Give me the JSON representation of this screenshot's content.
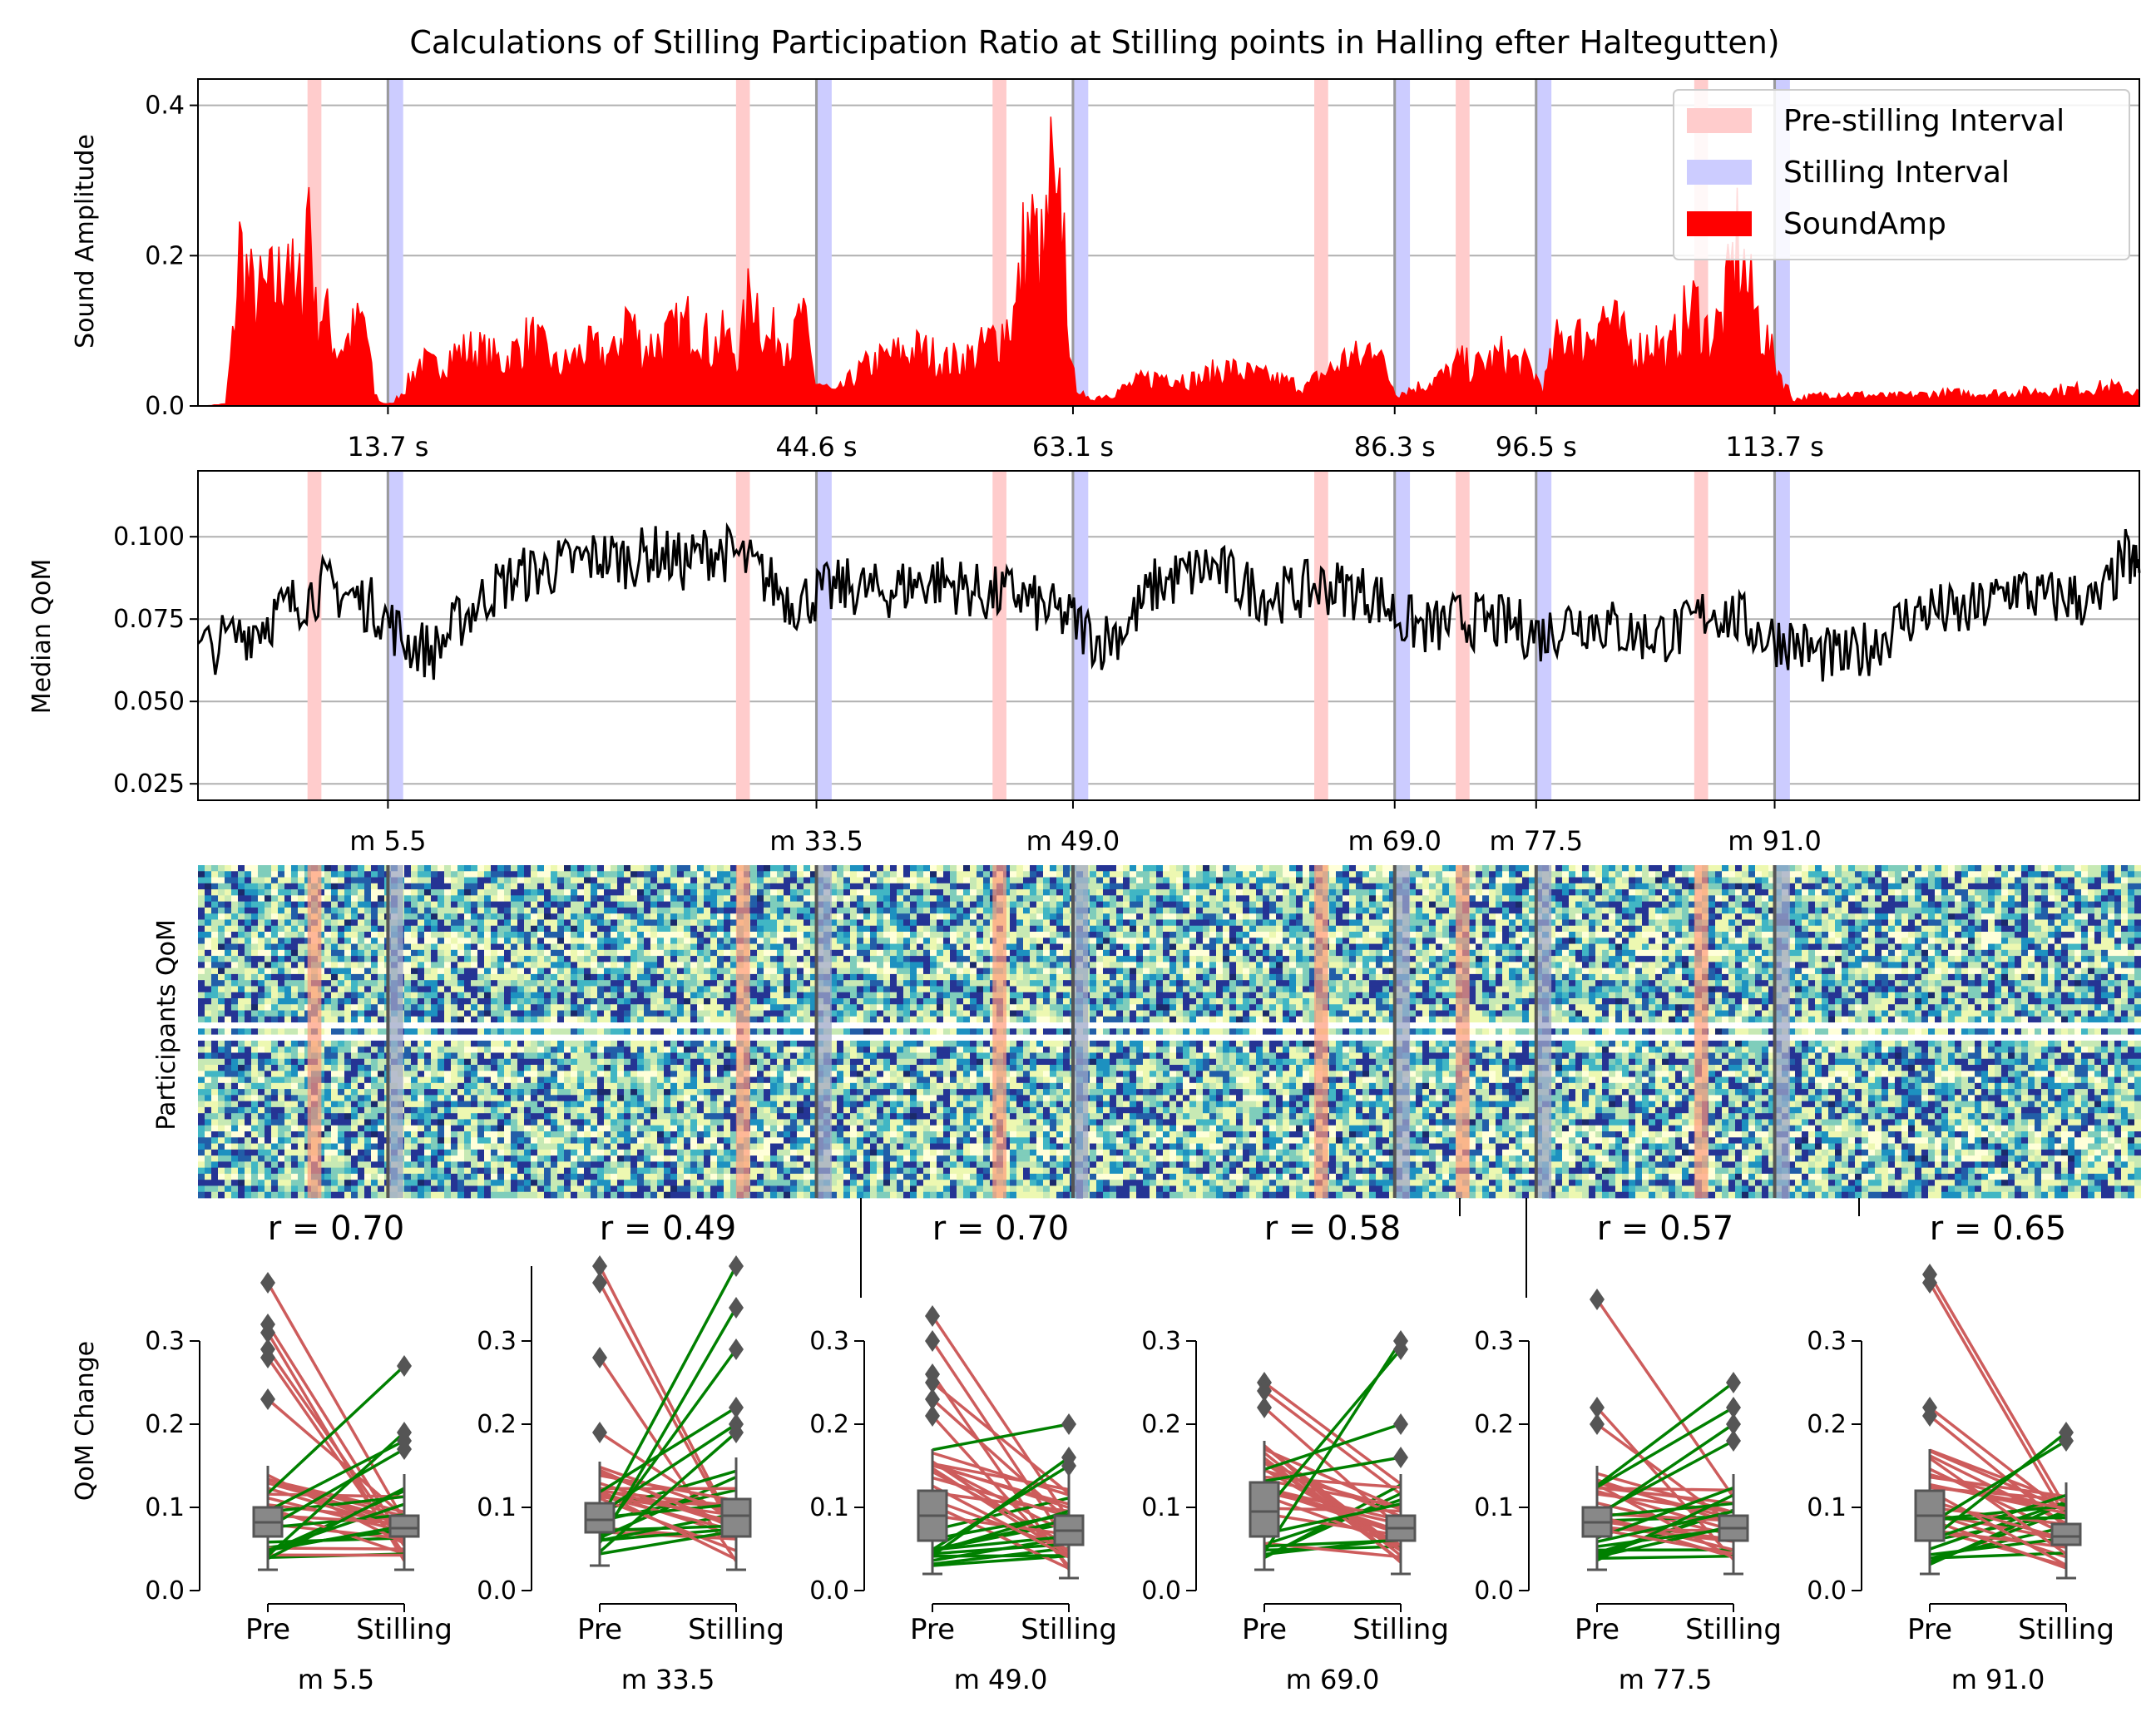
{
  "title": "Calculations of Stilling Participation Ratio at Stilling points in Halling efter Haltegutten)",
  "colors": {
    "pre_interval": "#ffcccc",
    "stilling_interval": "#ccccff",
    "sound": "#ff0000",
    "median_line": "#000000",
    "increase_line": "#008000",
    "decrease_line": "#cd5c5c",
    "box": "#888888"
  },
  "chart_data": [
    {
      "type": "area",
      "name": "sound_amplitude",
      "ylabel": "Sound Amplitude",
      "xlim": [
        0,
        140
      ],
      "ylim": [
        0,
        0.435
      ],
      "yticks": [
        0.0,
        0.2,
        0.4
      ],
      "ytick_labels": [
        "0.0",
        "0.2",
        "0.4"
      ],
      "grid": true,
      "legend_position": "top-right",
      "legend": [
        {
          "label": "Pre-stilling Interval",
          "color": "#ffcccc"
        },
        {
          "label": "Stilling Interval",
          "color": "#ccccff"
        },
        {
          "label": "SoundAmp",
          "color": "#ff0000"
        }
      ],
      "stilling_points": [
        13.7,
        44.6,
        63.1,
        86.3,
        96.5,
        113.7
      ],
      "stilling_labels": [
        "13.7 s",
        "44.6 s",
        "63.1 s",
        "86.3 s",
        "96.5 s",
        "113.7 s"
      ],
      "x": [
        0.5,
        2,
        2.5,
        3,
        4,
        5,
        6,
        6.5,
        7,
        7.5,
        8,
        8.5,
        9,
        10,
        11,
        12,
        12.7,
        13.2,
        14,
        15,
        16,
        17,
        18,
        20,
        22,
        24,
        26,
        28,
        30,
        31,
        32,
        34,
        36,
        37,
        38,
        39,
        40,
        41,
        42,
        43,
        43.5,
        44.5,
        46,
        48,
        50,
        52,
        54,
        56,
        58,
        59,
        59.5,
        60,
        61,
        61.5,
        62,
        62.3,
        63,
        64,
        66,
        68,
        70,
        72,
        74,
        76,
        78,
        80,
        81,
        82,
        83,
        84,
        85,
        85.5,
        86.5,
        88,
        90,
        91,
        92,
        93,
        94,
        95,
        96,
        97,
        98,
        99,
        100,
        101,
        102,
        103,
        104,
        105,
        106,
        107,
        108,
        109,
        110,
        111,
        112,
        113.5,
        115,
        118,
        122,
        126,
        130,
        134,
        138,
        140
      ],
      "y": [
        0.0,
        0.003,
        0.1,
        0.25,
        0.17,
        0.18,
        0.2,
        0.28,
        0.15,
        0.2,
        0.35,
        0.14,
        0.16,
        0.09,
        0.11,
        0.14,
        0.02,
        0.005,
        0.003,
        0.03,
        0.07,
        0.06,
        0.08,
        0.09,
        0.07,
        0.11,
        0.06,
        0.09,
        0.08,
        0.15,
        0.09,
        0.11,
        0.14,
        0.09,
        0.11,
        0.08,
        0.2,
        0.1,
        0.12,
        0.1,
        0.15,
        0.04,
        0.02,
        0.06,
        0.08,
        0.09,
        0.07,
        0.08,
        0.12,
        0.15,
        0.24,
        0.28,
        0.22,
        0.35,
        0.25,
        0.33,
        0.05,
        0.01,
        0.02,
        0.04,
        0.05,
        0.04,
        0.06,
        0.05,
        0.04,
        0.03,
        0.05,
        0.06,
        0.08,
        0.07,
        0.12,
        0.06,
        0.02,
        0.03,
        0.05,
        0.07,
        0.06,
        0.07,
        0.08,
        0.07,
        0.06,
        0.03,
        0.1,
        0.12,
        0.1,
        0.15,
        0.13,
        0.1,
        0.09,
        0.11,
        0.08,
        0.13,
        0.16,
        0.11,
        0.14,
        0.26,
        0.17,
        0.08,
        0.01,
        0.02,
        0.015,
        0.02,
        0.02,
        0.025,
        0.03,
        0.02
      ]
    },
    {
      "type": "line",
      "name": "median_qom",
      "ylabel": "Median QoM",
      "xlim": [
        0,
        140
      ],
      "ylim": [
        0.02,
        0.12
      ],
      "yticks": [
        0.025,
        0.05,
        0.075,
        0.1
      ],
      "ytick_labels": [
        "0.025",
        "0.050",
        "0.075",
        "0.100"
      ],
      "grid": true,
      "measure_labels": [
        "m 5.5",
        "m 33.5",
        "m 49.0",
        "m 69.0",
        "m 77.5",
        "m 91.0"
      ],
      "x": [
        0,
        3,
        5,
        7,
        9,
        11,
        13,
        15,
        17,
        19,
        21,
        23,
        25,
        27,
        29,
        31,
        33,
        35,
        37,
        39,
        41,
        43,
        45,
        47,
        49,
        51,
        53,
        55,
        57,
        59,
        61,
        63,
        65,
        67,
        69,
        71,
        73,
        75,
        77,
        79,
        81,
        83,
        85,
        87,
        89,
        91,
        93,
        95,
        97,
        99,
        101,
        103,
        105,
        107,
        109,
        111,
        113,
        115,
        117,
        119,
        121,
        123,
        125,
        127,
        129,
        131,
        133,
        135,
        137,
        139,
        140
      ],
      "y": [
        0.065,
        0.07,
        0.075,
        0.08,
        0.085,
        0.082,
        0.078,
        0.068,
        0.065,
        0.075,
        0.083,
        0.088,
        0.09,
        0.092,
        0.094,
        0.093,
        0.095,
        0.092,
        0.096,
        0.094,
        0.087,
        0.08,
        0.083,
        0.085,
        0.083,
        0.085,
        0.087,
        0.085,
        0.082,
        0.083,
        0.078,
        0.075,
        0.068,
        0.073,
        0.085,
        0.088,
        0.091,
        0.086,
        0.082,
        0.083,
        0.085,
        0.084,
        0.082,
        0.074,
        0.072,
        0.075,
        0.074,
        0.073,
        0.07,
        0.075,
        0.074,
        0.071,
        0.07,
        0.071,
        0.078,
        0.075,
        0.07,
        0.068,
        0.064,
        0.063,
        0.068,
        0.075,
        0.078,
        0.076,
        0.079,
        0.085,
        0.081,
        0.082,
        0.079,
        0.094,
        0.089
      ]
    },
    {
      "type": "heatmap",
      "name": "participants_qom",
      "ylabel": "Participants QoM",
      "colormap": "YlGnBu",
      "rows": 55,
      "xlim": [
        0,
        140
      ]
    },
    {
      "type": "scatter",
      "name": "paired_qom_change",
      "ylabel": "QoM Change",
      "ylim": [
        0,
        0.4
      ],
      "yticks": [
        0.0,
        0.1,
        0.2,
        0.3
      ],
      "ytick_labels": [
        "0.0",
        "0.1",
        "0.2",
        "0.3"
      ],
      "categories": [
        "Pre",
        "Stilling"
      ],
      "panels": [
        {
          "xlabel": "m 5.5",
          "r_label": "r = 0.70",
          "pre_median": 0.082,
          "stilling_median": 0.075,
          "pre_q1": 0.065,
          "pre_q3": 0.1,
          "stilling_q1": 0.065,
          "stilling_q3": 0.09,
          "pre_outliers": [
            0.37,
            0.32,
            0.31,
            0.29,
            0.28,
            0.23
          ],
          "stilling_outliers": [
            0.27,
            0.19,
            0.18,
            0.17
          ]
        },
        {
          "xlabel": "m 33.5",
          "r_label": "r = 0.49",
          "pre_median": 0.085,
          "stilling_median": 0.09,
          "pre_q1": 0.07,
          "pre_q3": 0.105,
          "stilling_q1": 0.065,
          "stilling_q3": 0.11,
          "pre_outliers": [
            0.39,
            0.37,
            0.28,
            0.19
          ],
          "stilling_outliers": [
            0.39,
            0.34,
            0.29,
            0.22,
            0.2,
            0.19
          ]
        },
        {
          "xlabel": "m 49.0",
          "r_label": "r = 0.70",
          "pre_median": 0.09,
          "stilling_median": 0.072,
          "pre_q1": 0.06,
          "pre_q3": 0.12,
          "stilling_q1": 0.055,
          "stilling_q3": 0.09,
          "pre_outliers": [
            0.33,
            0.3,
            0.26,
            0.25,
            0.23,
            0.21
          ],
          "stilling_outliers": [
            0.2,
            0.16,
            0.15
          ]
        },
        {
          "xlabel": "m 69.0",
          "r_label": "r = 0.58",
          "pre_median": 0.095,
          "stilling_median": 0.075,
          "pre_q1": 0.065,
          "pre_q3": 0.13,
          "stilling_q1": 0.06,
          "stilling_q3": 0.09,
          "pre_outliers": [
            0.25,
            0.24,
            0.22
          ],
          "stilling_outliers": [
            0.3,
            0.29,
            0.2,
            0.16
          ]
        },
        {
          "xlabel": "m 77.5",
          "r_label": "r = 0.57",
          "pre_median": 0.082,
          "stilling_median": 0.075,
          "pre_q1": 0.065,
          "pre_q3": 0.1,
          "stilling_q1": 0.06,
          "stilling_q3": 0.09,
          "pre_outliers": [
            0.35,
            0.22,
            0.2
          ],
          "stilling_outliers": [
            0.25,
            0.22,
            0.2,
            0.18
          ]
        },
        {
          "xlabel": "m 91.0",
          "r_label": "r = 0.65",
          "pre_median": 0.09,
          "stilling_median": 0.065,
          "pre_q1": 0.06,
          "pre_q3": 0.12,
          "stilling_q1": 0.055,
          "stilling_q3": 0.08,
          "pre_outliers": [
            0.38,
            0.37,
            0.22,
            0.21
          ],
          "stilling_outliers": [
            0.19,
            0.18
          ]
        }
      ]
    }
  ]
}
